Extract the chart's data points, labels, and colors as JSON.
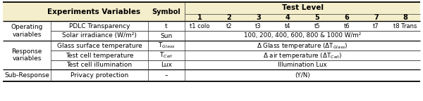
{
  "header_bg": "#f5eecc",
  "bg_color": "#ffffff",
  "figsize": [
    6.0,
    1.44
  ],
  "dpi": 100,
  "c0": 4,
  "c1": 72,
  "c2": 210,
  "c3": 262,
  "c4": 596,
  "row_bounds": [
    3,
    20,
    30,
    44,
    58,
    72,
    86,
    99,
    116,
    141
  ],
  "pdlc_vals": [
    "t1 colo",
    "t2",
    "t3",
    "t4",
    "t5",
    "t6",
    "t7",
    "t8 Trans"
  ],
  "solar_text": "100, 200, 400, 600, 800 & 1000 W/m²",
  "glass_text": "Δ Glass temperature (ΔT$_{Glass}$)",
  "cell_temp_text": "Δ air temperature (ΔT$_{Cell}$)",
  "illum_text": "Illumination Lux",
  "yn_text": "(Y/N)",
  "cat_col": [
    "Operating\nvariables",
    "Response\nvariables",
    "Sub-Response"
  ],
  "var_col": [
    "PDLC Transparency",
    "Solar irradiance (W/m²)",
    "Glass surface temperature",
    "Test cell temperature",
    "Test cell illumination",
    "Privacy protection"
  ],
  "sym_col": [
    "t",
    "Sun",
    "T$_{Glass}$",
    "T$_{Cell}$",
    "Lux",
    "–"
  ],
  "header_text": "Experiments Variables",
  "symbol_header": "Symbol",
  "test_level_header": "Test Level",
  "test_numbers": [
    "1",
    "2",
    "3",
    "4",
    "5",
    "6",
    "7",
    "8"
  ]
}
